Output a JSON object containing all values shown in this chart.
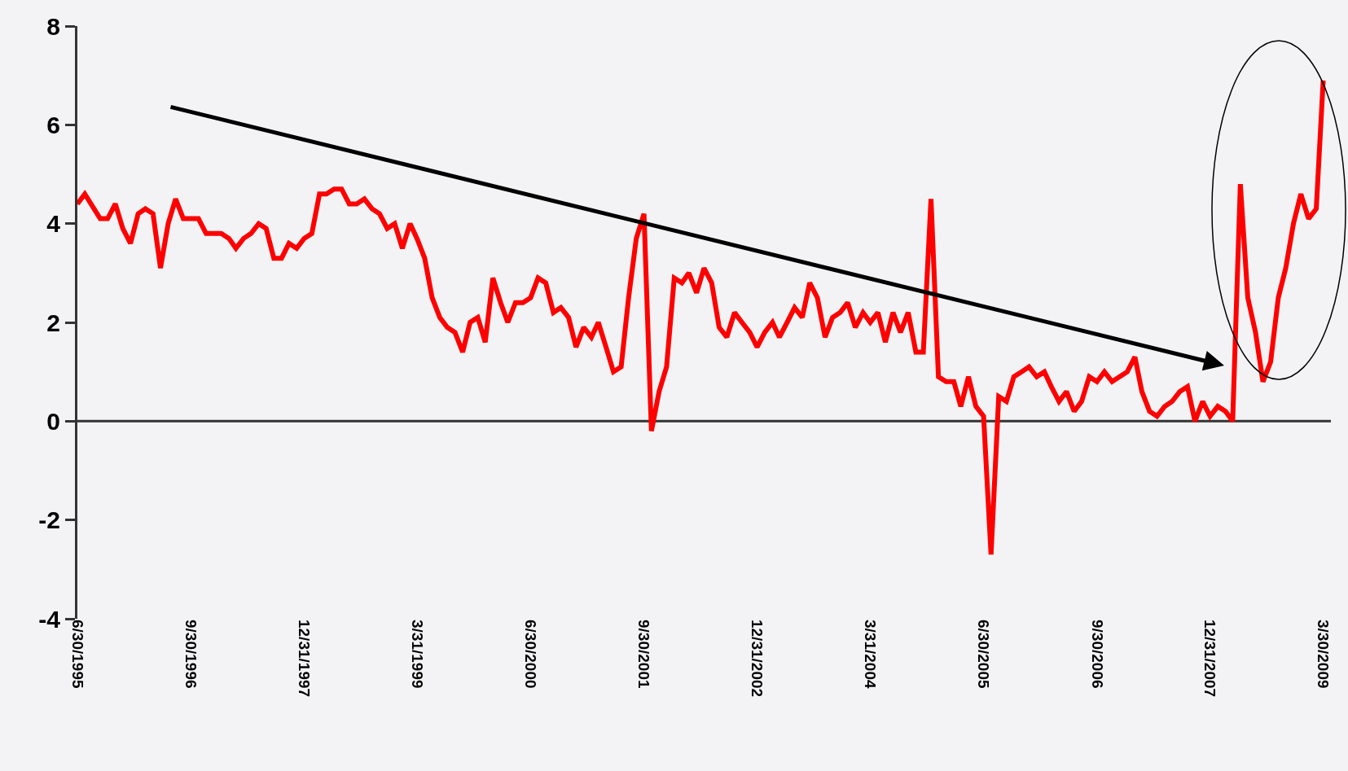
{
  "chart_data": {
    "type": "line",
    "xlim": [
      "1995-06",
      "2009-04"
    ],
    "xticks": [
      {
        "value": "1995-06",
        "label": "6/30/1995"
      },
      {
        "value": "1996-09",
        "label": "9/30/1996"
      },
      {
        "value": "1997-12",
        "label": "12/31/1997"
      },
      {
        "value": "1999-03",
        "label": "3/31/1999"
      },
      {
        "value": "2000-06",
        "label": "6/30/2000"
      },
      {
        "value": "2001-09",
        "label": "9/30/2001"
      },
      {
        "value": "2002-12",
        "label": "12/31/2002"
      },
      {
        "value": "2004-03",
        "label": "3/31/2004"
      },
      {
        "value": "2005-06",
        "label": "6/30/2005"
      },
      {
        "value": "2006-09",
        "label": "9/30/2006"
      },
      {
        "value": "2007-12",
        "label": "12/31/2007"
      },
      {
        "value": "2009-03",
        "label": "3/30/2009"
      }
    ],
    "ylim": [
      -4,
      8
    ],
    "yticks": [
      -4,
      -2,
      0,
      2,
      4,
      6,
      8
    ],
    "ref_lines": [
      {
        "axis": "y",
        "value": 0,
        "color": "#333333"
      }
    ],
    "series": [
      {
        "color": "#ff0000",
        "x": [
          "1995-06",
          "1995-07",
          "1995-09",
          "1995-10",
          "1995-11",
          "1995-12",
          "1996-01",
          "1996-02",
          "1996-03",
          "1996-04",
          "1996-05",
          "1996-06",
          "1996-07",
          "1996-08",
          "1996-10",
          "1996-11",
          "1997-01",
          "1997-02",
          "1997-03",
          "1997-04",
          "1997-05",
          "1997-06",
          "1997-07",
          "1997-08",
          "1997-09",
          "1997-10",
          "1997-11",
          "1997-12",
          "1998-01",
          "1998-02",
          "1998-03",
          "1998-04",
          "1998-05",
          "1998-06",
          "1998-07",
          "1998-08",
          "1998-09",
          "1998-10",
          "1998-11",
          "1998-12",
          "1999-01",
          "1999-02",
          "1999-03",
          "1999-04",
          "1999-05",
          "1999-06",
          "1999-07",
          "1999-08",
          "1999-09",
          "1999-10",
          "1999-11",
          "1999-12",
          "2000-01",
          "2000-02",
          "2000-03",
          "2000-04",
          "2000-05",
          "2000-06",
          "2000-07",
          "2000-08",
          "2000-09",
          "2000-10",
          "2000-11",
          "2000-12",
          "2001-01",
          "2001-02",
          "2001-03",
          "2001-04",
          "2001-05",
          "2001-06",
          "2001-07",
          "2001-08",
          "2001-09",
          "2001-10",
          "2001-11",
          "2001-12",
          "2002-01",
          "2002-02",
          "2002-03",
          "2002-04",
          "2002-05",
          "2002-06",
          "2002-07",
          "2002-08",
          "2002-09",
          "2002-10",
          "2002-11",
          "2002-12",
          "2003-01",
          "2003-02",
          "2003-03",
          "2003-04",
          "2003-05",
          "2003-06",
          "2003-07",
          "2003-08",
          "2003-09",
          "2003-10",
          "2003-11",
          "2003-12",
          "2004-01",
          "2004-02",
          "2004-03",
          "2004-04",
          "2004-05",
          "2004-06",
          "2004-07",
          "2004-08",
          "2004-09",
          "2004-10",
          "2004-11",
          "2004-12",
          "2005-01",
          "2005-02",
          "2005-03",
          "2005-04",
          "2005-05",
          "2005-06",
          "2005-07",
          "2005-08",
          "2005-09",
          "2005-10",
          "2005-11",
          "2005-12",
          "2006-01",
          "2006-02",
          "2006-03",
          "2006-04",
          "2006-05",
          "2006-06",
          "2006-07",
          "2006-08",
          "2006-09",
          "2006-10",
          "2006-11",
          "2006-12",
          "2007-01",
          "2007-02",
          "2007-03",
          "2007-04",
          "2007-05",
          "2007-06",
          "2007-07",
          "2007-08",
          "2007-09",
          "2007-10",
          "2007-11",
          "2007-12",
          "2008-01",
          "2008-02",
          "2008-03",
          "2008-04",
          "2008-05",
          "2008-06",
          "2008-07",
          "2008-08",
          "2008-09",
          "2008-10",
          "2008-11",
          "2008-12",
          "2009-01",
          "2009-02",
          "2009-03"
        ],
        "values": [
          4.4,
          4.6,
          4.1,
          4.1,
          4.4,
          3.9,
          3.6,
          4.2,
          4.3,
          4.2,
          3.1,
          4.0,
          4.5,
          4.1,
          4.1,
          3.8,
          3.8,
          3.7,
          3.5,
          3.7,
          3.8,
          4.0,
          3.9,
          3.3,
          3.3,
          3.6,
          3.5,
          3.7,
          3.8,
          4.6,
          4.6,
          4.7,
          4.7,
          4.4,
          4.4,
          4.5,
          4.3,
          4.2,
          3.9,
          4.0,
          3.5,
          4.0,
          3.7,
          3.3,
          2.5,
          2.1,
          1.9,
          1.8,
          1.4,
          2.0,
          2.1,
          1.6,
          2.9,
          2.4,
          2.0,
          2.4,
          2.4,
          2.5,
          2.9,
          2.8,
          2.2,
          2.3,
          2.1,
          1.5,
          1.9,
          1.7,
          2.0,
          1.5,
          1.0,
          1.1,
          2.5,
          3.7,
          4.2,
          -0.2,
          0.6,
          1.1,
          2.9,
          2.8,
          3.0,
          2.6,
          3.1,
          2.8,
          1.9,
          1.7,
          2.2,
          2.0,
          1.8,
          1.5,
          1.8,
          2.0,
          1.7,
          2.0,
          2.3,
          2.1,
          2.8,
          2.5,
          1.7,
          2.1,
          2.2,
          2.4,
          1.9,
          2.2,
          2.0,
          2.2,
          1.6,
          2.2,
          1.8,
          2.2,
          1.4,
          1.4,
          4.5,
          0.9,
          0.8,
          0.8,
          0.3,
          0.9,
          0.3,
          0.1,
          -2.7,
          0.5,
          0.4,
          0.9,
          1.0,
          1.1,
          0.9,
          1.0,
          0.7,
          0.4,
          0.6,
          0.2,
          0.4,
          0.9,
          0.8,
          1.0,
          0.8,
          0.9,
          1.0,
          1.3,
          0.6,
          0.2,
          0.1,
          0.3,
          0.4,
          0.6,
          0.7,
          0.0,
          0.4,
          0.1,
          0.3,
          0.2,
          0.0,
          4.8,
          2.5,
          1.8,
          0.8,
          1.2,
          2.5,
          3.1,
          4.0,
          4.6,
          4.1,
          4.3,
          6.9
        ]
      }
    ]
  }
}
